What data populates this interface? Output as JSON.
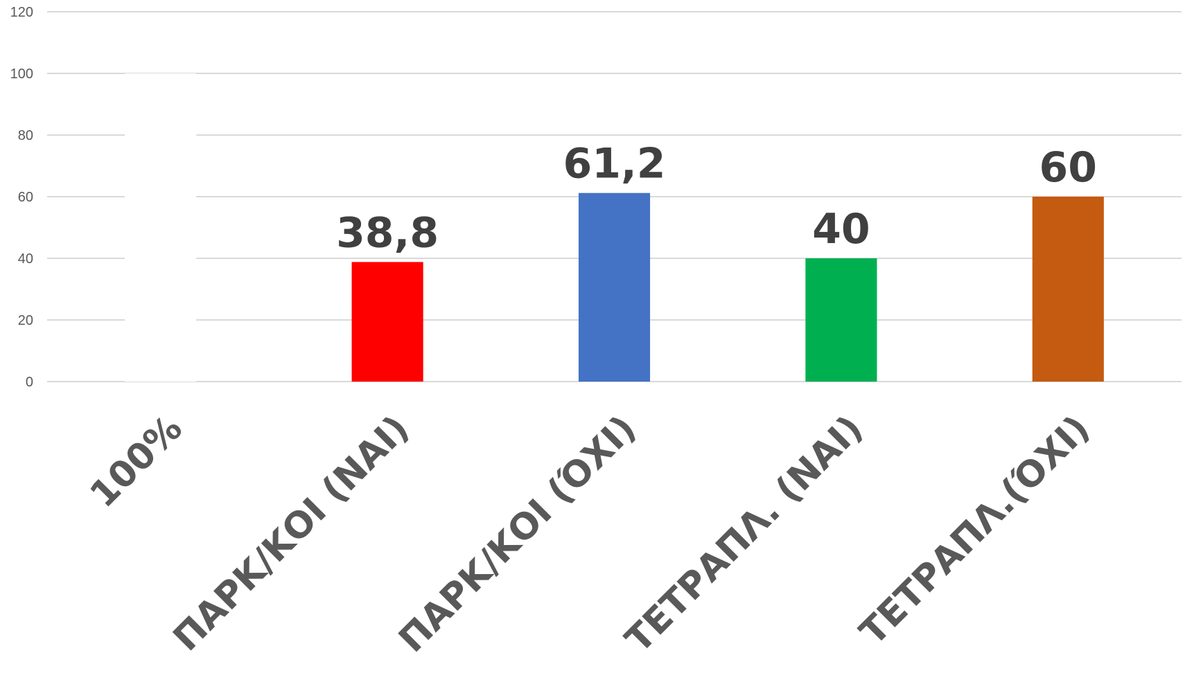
{
  "chart_data": {
    "type": "bar",
    "categories": [
      "100%",
      "ΠΑΡΚ/ΚΟΙ (ΝΑΙ)",
      "ΠΑΡΚ/ΚΟΙ (ΌΧΙ)",
      "ΤΕΤΡΑΠΛ. (ΝΑΙ)",
      "ΤΕΤΡΑΠΛ.(ΌΧΙ)"
    ],
    "values": [
      100,
      38.8,
      61.2,
      40,
      60
    ],
    "data_labels": [
      "",
      "38,8",
      "61,2",
      "40",
      "60"
    ],
    "colors": [
      "#ffffff",
      "#ff0000",
      "#4472c4",
      "#00b050",
      "#c55a11"
    ],
    "ylim": [
      0,
      120
    ],
    "yticks": [
      0,
      20,
      40,
      60,
      80,
      100,
      120
    ],
    "grid": true,
    "title": "",
    "xlabel": "",
    "ylabel": ""
  }
}
